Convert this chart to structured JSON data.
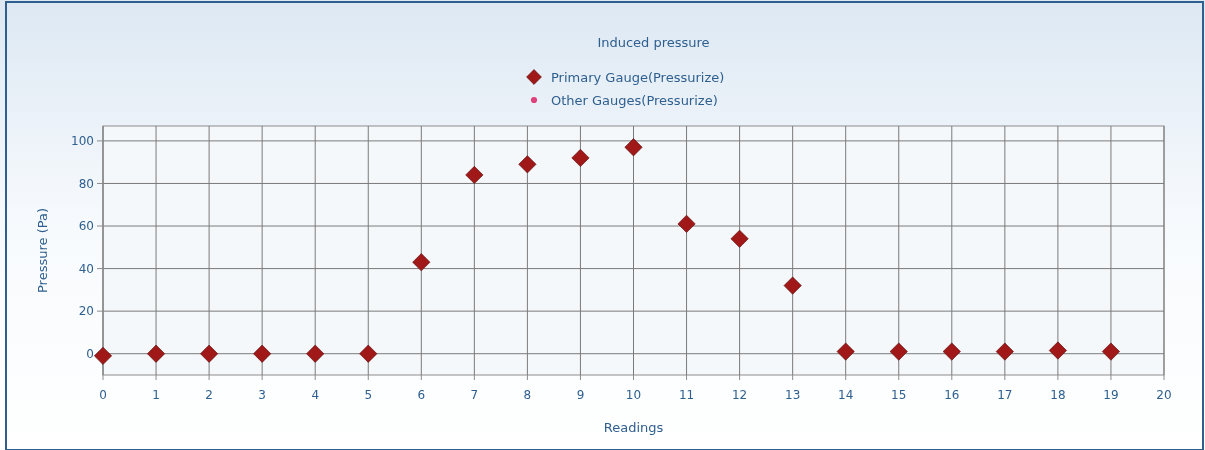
{
  "chart_data": {
    "type": "scatter",
    "title": "Induced pressure",
    "xlabel": "Readings",
    "ylabel": "Pressure (Pa)",
    "x": [
      0,
      1,
      2,
      3,
      4,
      5,
      6,
      7,
      8,
      9,
      10,
      11,
      12,
      13,
      14,
      15,
      16,
      17,
      18,
      19
    ],
    "series": [
      {
        "name": "Primary Gauge(Pressurize)",
        "color": "#a01818",
        "marker": "diamond",
        "values": [
          -1,
          0,
          0,
          0,
          0,
          0,
          43,
          84,
          89,
          92,
          97,
          61,
          54,
          32,
          1,
          1,
          1,
          1,
          1.5,
          1
        ]
      },
      {
        "name": "Other Gauges(Pressurize)",
        "color": "#e0407a",
        "marker": "circle",
        "values": [
          null,
          null,
          null,
          null,
          null,
          null,
          null,
          null,
          null,
          null,
          null,
          null,
          null,
          null,
          null,
          null,
          null,
          null,
          null,
          null
        ]
      }
    ],
    "xlim": [
      0,
      20
    ],
    "xticks": [
      0,
      1,
      2,
      3,
      4,
      5,
      6,
      7,
      8,
      9,
      10,
      11,
      12,
      13,
      14,
      15,
      16,
      17,
      18,
      19,
      20
    ],
    "ylim": [
      -10,
      107
    ],
    "yticks": [
      0,
      20,
      40,
      60,
      80,
      100
    ],
    "grid": true,
    "legend": "top"
  }
}
